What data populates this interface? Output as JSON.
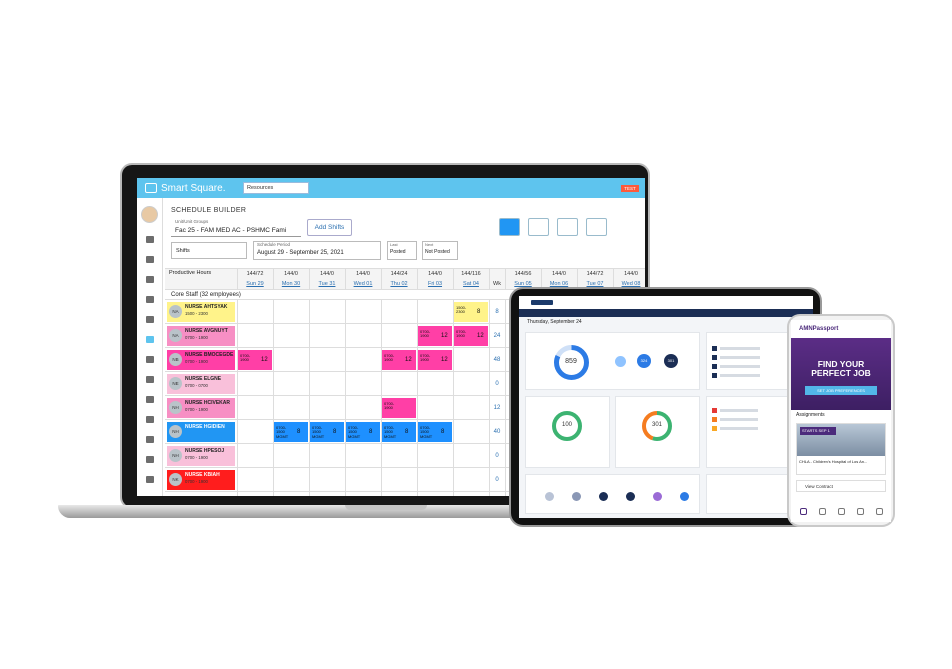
{
  "laptop": {
    "brand": "Smart Square.",
    "resources": "Resources",
    "badge": "TEST",
    "title": "SCHEDULE BUILDER",
    "unit_label": "Unit/Unit Groups",
    "unit_value": "Fac 25 - FAM MED AC - PSHMC Fami",
    "add_shifts": "Add Shifts",
    "shifts_select": "Shifts",
    "period_label": "Schedule Period",
    "period_value": "August 29 - September 25, 2021",
    "last_label": "Last",
    "last_value": "Posted",
    "next_label": "Next",
    "next_value": "Not Posted",
    "productive_hours": "Productive Hours",
    "columns": [
      {
        "hours": "144/72",
        "day": "Sun 29"
      },
      {
        "hours": "144/0",
        "day": "Mon 30"
      },
      {
        "hours": "144/0",
        "day": "Tue 31"
      },
      {
        "hours": "144/0",
        "day": "Wed 01"
      },
      {
        "hours": "144/24",
        "day": "Thu 02"
      },
      {
        "hours": "144/0",
        "day": "Fri 03"
      },
      {
        "hours": "144/116",
        "day": "Sat 04"
      },
      {
        "day": "Wk"
      },
      {
        "hours": "144/56",
        "day": "Sun 05"
      },
      {
        "hours": "144/0",
        "day": "Mon 06"
      },
      {
        "hours": "144/72",
        "day": "Tue 07"
      },
      {
        "hours": "144/0",
        "day": "Wed 08"
      }
    ],
    "group": "Core Staff (32 employees)",
    "employees": [
      {
        "initials": "NA",
        "name": "NURSE AHTSYAK",
        "time": "1500 - 2300",
        "color": "#fff38a",
        "week": "8",
        "shifts": [
          {
            "col": 6,
            "time": "1500-2300",
            "hours": "8",
            "color": "#fff38a"
          }
        ]
      },
      {
        "initials": "NA",
        "name": "NURSE AVGNUYT",
        "time": "0700 - 1900",
        "color": "#f78fc4",
        "week": "24",
        "shifts": [
          {
            "col": 5,
            "time": "0700-1900",
            "hours": "12",
            "color": "#ff3fa6"
          },
          {
            "col": 6,
            "time": "0700-1900",
            "hours": "12",
            "color": "#ff3fa6"
          }
        ]
      },
      {
        "initials": "NB",
        "name": "NURSE BMOCEGDE",
        "time": "0700 - 1900",
        "color": "#ff3fa6",
        "week": "48",
        "shifts": [
          {
            "col": 0,
            "time": "0700-1900",
            "hours": "12",
            "color": "#ff3fa6"
          },
          {
            "col": 4,
            "time": "0700-1900",
            "hours": "12",
            "color": "#ff3fa6"
          },
          {
            "col": 5,
            "time": "0700-1900",
            "hours": "12",
            "color": "#ff3fa6"
          }
        ]
      },
      {
        "initials": "NE",
        "name": "NURSE ELGNE",
        "time": "0700 - 0700",
        "color": "#f9c0da",
        "week": "0",
        "shifts": []
      },
      {
        "initials": "NH",
        "name": "NURSE HCIVEKAR",
        "time": "0700 - 1900",
        "color": "#f78fc4",
        "week": "12",
        "shifts": [
          {
            "col": 4,
            "time": "0700-1900",
            "hours": "",
            "color": "#ff3fa6"
          }
        ]
      },
      {
        "initials": "NH",
        "name": "NURSE HGIDIEN",
        "time": "",
        "color": "#2196f3",
        "week": "40",
        "shifts": [
          {
            "col": 1,
            "time": "0700-1500 MGMT",
            "hours": "8",
            "color": "#1e90ff"
          },
          {
            "col": 2,
            "time": "0700-1500 MGMT",
            "hours": "8",
            "color": "#1e90ff"
          },
          {
            "col": 3,
            "time": "0700-1500 MGMT",
            "hours": "8",
            "color": "#1e90ff"
          },
          {
            "col": 4,
            "time": "0700-1500 MGMT",
            "hours": "8",
            "color": "#1e90ff"
          },
          {
            "col": 5,
            "time": "0700-1500 MGMT",
            "hours": "8",
            "color": "#1e90ff"
          }
        ]
      },
      {
        "initials": "NH",
        "name": "NURSE HPESOJ",
        "time": "0700 - 1900",
        "color": "#f9c0da",
        "week": "0",
        "shifts": []
      },
      {
        "initials": "NK",
        "name": "NURSE KBIAH",
        "time": "0700 - 1900",
        "color": "#ff1d1d",
        "week": "0",
        "shifts": []
      }
    ]
  },
  "tablet": {
    "date": "Thursday, September 24",
    "total": "859",
    "small": [
      "324",
      "301"
    ],
    "submitted": "100",
    "missed": "301"
  },
  "phone": {
    "brand": "AMNPassport",
    "headline": "FIND YOUR PERFECT JOB",
    "button": "SET JOB PREFERENCES",
    "section": "Assignments",
    "tag": "STARTS SEP 1",
    "facility": "CHLA - Children's Hospital of Los An...",
    "action": "View Contract"
  }
}
